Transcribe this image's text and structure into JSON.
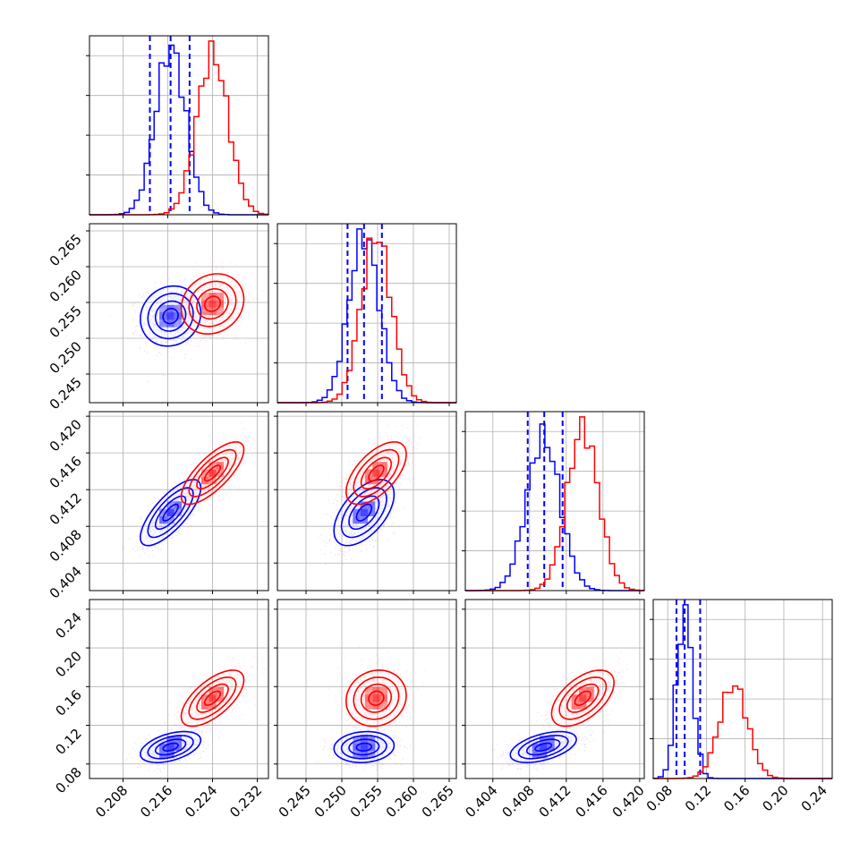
{
  "chart_data": {
    "type": "corner",
    "grid": true,
    "colors": {
      "blue": "#0000ff",
      "red": "#ff0000"
    },
    "params": [
      {
        "lim": [
          0.202,
          0.234
        ],
        "ticks": [
          "0.208",
          "0.216",
          "0.224",
          "0.232"
        ],
        "tick_values": [
          0.208,
          0.216,
          0.224,
          0.232
        ]
      },
      {
        "lim": [
          0.241,
          0.266
        ],
        "ticks": [
          "0.245",
          "0.250",
          "0.255",
          "0.260",
          "0.265"
        ],
        "tick_values": [
          0.245,
          0.25,
          0.255,
          0.26,
          0.265
        ]
      },
      {
        "lim": [
          0.401,
          0.4205
        ],
        "ticks": [
          "0.404",
          "0.408",
          "0.412",
          "0.416",
          "0.420"
        ],
        "tick_values": [
          0.404,
          0.408,
          0.412,
          0.416,
          0.42
        ]
      },
      {
        "lim": [
          0.065,
          0.25
        ],
        "ticks": [
          "0.08",
          "0.12",
          "0.16",
          "0.20",
          "0.24"
        ],
        "tick_values": [
          0.08,
          0.12,
          0.16,
          0.2,
          0.24
        ]
      }
    ],
    "series": [
      {
        "color": "blue",
        "mean": [
          0.2165,
          0.2531,
          0.4095,
          0.0975
        ],
        "sigma": [
          0.0027,
          0.0021,
          0.0018,
          0.008
        ],
        "corr": [
          [
            1,
            0.1,
            0.75,
            0.45
          ],
          [
            0.1,
            1,
            0.55,
            0.1
          ],
          [
            0.75,
            0.55,
            1,
            0.5
          ],
          [
            0.45,
            0.1,
            0.5,
            1
          ]
        ],
        "quantiles": [
          [
            0.2128,
            0.2165,
            0.2199
          ],
          [
            0.2508,
            0.2531,
            0.2556
          ],
          [
            0.4078,
            0.4096,
            0.4116
          ],
          [
            0.089,
            0.0975,
            0.1135
          ]
        ]
      },
      {
        "color": "red",
        "mean": [
          0.224,
          0.2548,
          0.4138,
          0.148
        ],
        "sigma": [
          0.0028,
          0.0021,
          0.0017,
          0.0145
        ],
        "corr": [
          [
            1,
            0.15,
            0.75,
            0.65
          ],
          [
            0.15,
            1,
            0.6,
            0.1
          ],
          [
            0.75,
            0.6,
            1,
            0.55
          ],
          [
            0.65,
            0.1,
            0.55,
            1
          ]
        ],
        "quantiles": []
      }
    ]
  }
}
